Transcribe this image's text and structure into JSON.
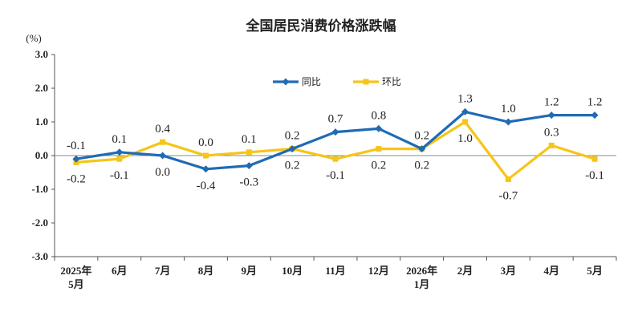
{
  "chart_data": {
    "type": "line",
    "title": "全国居民消费价格涨跌幅",
    "ylabel": "(%)",
    "ylim": [
      -3.0,
      3.0
    ],
    "yticks": [
      "3.0",
      "2.0",
      "1.0",
      "0.0",
      "-1.0",
      "-2.0",
      "-3.0"
    ],
    "categories": [
      [
        "2025年",
        "5月"
      ],
      [
        "6月"
      ],
      [
        "7月"
      ],
      [
        "8月"
      ],
      [
        "9月"
      ],
      [
        "10月"
      ],
      [
        "11月"
      ],
      [
        "12月"
      ],
      [
        "2026年",
        "1月"
      ],
      [
        "2月"
      ],
      [
        "3月"
      ],
      [
        "4月"
      ],
      [
        "5月"
      ]
    ],
    "series": [
      {
        "name": "同比",
        "color": "#1f6bb5",
        "marker": "diamond",
        "values": [
          -0.1,
          0.1,
          0.0,
          -0.4,
          -0.3,
          0.2,
          0.7,
          0.8,
          0.2,
          1.3,
          1.0,
          1.2,
          1.2
        ],
        "labels": [
          "-0.1",
          "0.1",
          "0.0",
          "-0.4",
          "-0.3",
          "0.2",
          "0.7",
          "0.8",
          "0.2",
          "1.3",
          "1.0",
          "1.2",
          "1.2"
        ],
        "label_position": [
          "above",
          "above",
          "below",
          "below",
          "below",
          "above",
          "above",
          "above",
          "above",
          "above",
          "above",
          "above",
          "above"
        ]
      },
      {
        "name": "环比",
        "color": "#f5c518",
        "marker": "square",
        "values": [
          -0.2,
          -0.1,
          0.4,
          0.0,
          0.1,
          0.2,
          -0.1,
          0.2,
          0.2,
          1.0,
          -0.7,
          0.3,
          -0.1
        ],
        "labels": [
          "-0.2",
          "-0.1",
          "0.4",
          "0.0",
          "0.1",
          "0.2",
          "-0.1",
          "0.2",
          "0.2",
          "1.0",
          "-0.7",
          "0.3",
          "-0.1"
        ],
        "label_position": [
          "below",
          "below",
          "above",
          "above",
          "above",
          "below",
          "below",
          "below",
          "below",
          "below",
          "below",
          "above",
          "below"
        ]
      }
    ],
    "legend_position": "top-center",
    "grid": false
  }
}
